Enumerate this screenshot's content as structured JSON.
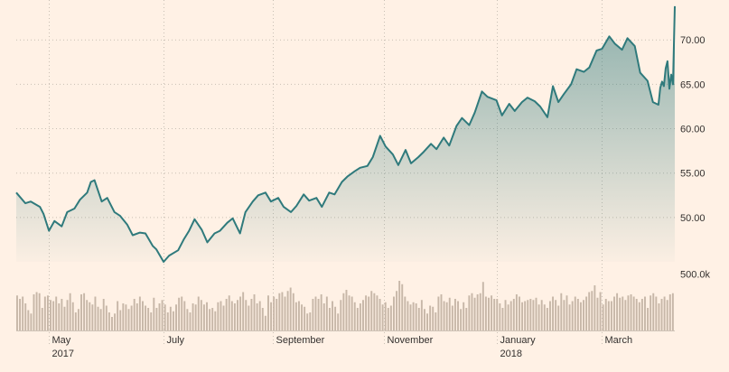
{
  "colors": {
    "background": "#fff1e5",
    "price_line": "#2f7a7c",
    "area_top": "#2f7a7c",
    "volume_bar": "#c7b7a8",
    "tick_label": "#33302e"
  },
  "chart_data": [
    {
      "type": "area",
      "ylim": [
        45.0,
        74.5
      ],
      "yticks": [
        {
          "value": 50,
          "label": "50.00"
        },
        {
          "value": 55,
          "label": "55.00"
        },
        {
          "value": 60,
          "label": "60.00"
        },
        {
          "value": 65,
          "label": "65.00"
        },
        {
          "value": 70,
          "label": "70.00"
        }
      ],
      "xlim": [
        "2017-04-13",
        "2018-04-10"
      ],
      "xticks": [
        {
          "date": "2017-05-01",
          "label": "May",
          "sublabel": "2017"
        },
        {
          "date": "2017-07-03",
          "label": "July",
          "sublabel": ""
        },
        {
          "date": "2017-09-01",
          "label": "September",
          "sublabel": ""
        },
        {
          "date": "2017-11-01",
          "label": "November",
          "sublabel": ""
        },
        {
          "date": "2018-01-02",
          "label": "January",
          "sublabel": "2018"
        },
        {
          "date": "2018-03-01",
          "label": "March",
          "sublabel": ""
        }
      ],
      "grid": true,
      "series": [
        {
          "points": [
            [
              "2017-04-13",
              52.8
            ],
            [
              "2017-04-18",
              51.6
            ],
            [
              "2017-04-21",
              51.8
            ],
            [
              "2017-04-26",
              51.2
            ],
            [
              "2017-04-28",
              50.4
            ],
            [
              "2017-05-01",
              48.5
            ],
            [
              "2017-05-04",
              49.6
            ],
            [
              "2017-05-08",
              49.0
            ],
            [
              "2017-05-11",
              50.6
            ],
            [
              "2017-05-15",
              51.0
            ],
            [
              "2017-05-18",
              52.0
            ],
            [
              "2017-05-22",
              52.8
            ],
            [
              "2017-05-24",
              54.0
            ],
            [
              "2017-05-26",
              54.2
            ],
            [
              "2017-05-30",
              51.8
            ],
            [
              "2017-06-02",
              52.2
            ],
            [
              "2017-06-06",
              50.6
            ],
            [
              "2017-06-09",
              50.2
            ],
            [
              "2017-06-13",
              49.2
            ],
            [
              "2017-06-16",
              48.0
            ],
            [
              "2017-06-20",
              48.3
            ],
            [
              "2017-06-23",
              48.2
            ],
            [
              "2017-06-27",
              46.8
            ],
            [
              "2017-06-29",
              46.4
            ],
            [
              "2017-07-03",
              45.0
            ],
            [
              "2017-07-06",
              45.7
            ],
            [
              "2017-07-11",
              46.3
            ],
            [
              "2017-07-14",
              47.5
            ],
            [
              "2017-07-17",
              48.5
            ],
            [
              "2017-07-20",
              49.8
            ],
            [
              "2017-07-24",
              48.6
            ],
            [
              "2017-07-27",
              47.2
            ],
            [
              "2017-07-31",
              48.2
            ],
            [
              "2017-08-03",
              48.5
            ],
            [
              "2017-08-07",
              49.4
            ],
            [
              "2017-08-10",
              49.9
            ],
            [
              "2017-08-14",
              48.2
            ],
            [
              "2017-08-17",
              50.6
            ],
            [
              "2017-08-21",
              51.8
            ],
            [
              "2017-08-24",
              52.5
            ],
            [
              "2017-08-28",
              52.8
            ],
            [
              "2017-08-31",
              51.8
            ],
            [
              "2017-09-04",
              52.2
            ],
            [
              "2017-09-07",
              51.2
            ],
            [
              "2017-09-11",
              50.6
            ],
            [
              "2017-09-14",
              51.3
            ],
            [
              "2017-09-18",
              52.6
            ],
            [
              "2017-09-21",
              51.9
            ],
            [
              "2017-09-25",
              52.2
            ],
            [
              "2017-09-28",
              51.2
            ],
            [
              "2017-10-02",
              52.8
            ],
            [
              "2017-10-05",
              52.6
            ],
            [
              "2017-10-09",
              54.0
            ],
            [
              "2017-10-12",
              54.6
            ],
            [
              "2017-10-16",
              55.2
            ],
            [
              "2017-10-19",
              55.6
            ],
            [
              "2017-10-23",
              55.8
            ],
            [
              "2017-10-26",
              56.8
            ],
            [
              "2017-10-30",
              59.2
            ],
            [
              "2017-11-02",
              58.0
            ],
            [
              "2017-11-06",
              57.1
            ],
            [
              "2017-11-09",
              55.9
            ],
            [
              "2017-11-13",
              57.6
            ],
            [
              "2017-11-16",
              56.1
            ],
            [
              "2017-11-20",
              56.8
            ],
            [
              "2017-11-23",
              57.4
            ],
            [
              "2017-11-27",
              58.3
            ],
            [
              "2017-11-30",
              57.7
            ],
            [
              "2017-12-04",
              59.0
            ],
            [
              "2017-12-07",
              58.1
            ],
            [
              "2017-12-11",
              60.3
            ],
            [
              "2017-12-14",
              61.2
            ],
            [
              "2017-12-18",
              60.4
            ],
            [
              "2017-12-21",
              61.8
            ],
            [
              "2017-12-25",
              64.2
            ],
            [
              "2017-12-28",
              63.6
            ],
            [
              "2018-01-02",
              63.2
            ],
            [
              "2018-01-05",
              61.5
            ],
            [
              "2018-01-09",
              62.8
            ],
            [
              "2018-01-12",
              62.0
            ],
            [
              "2018-01-16",
              63.0
            ],
            [
              "2018-01-19",
              63.5
            ],
            [
              "2018-01-23",
              63.1
            ],
            [
              "2018-01-26",
              62.5
            ],
            [
              "2018-01-30",
              61.3
            ],
            [
              "2018-02-02",
              64.8
            ],
            [
              "2018-02-05",
              63.0
            ],
            [
              "2018-02-08",
              63.9
            ],
            [
              "2018-02-12",
              65.0
            ],
            [
              "2018-02-15",
              66.7
            ],
            [
              "2018-02-19",
              66.4
            ],
            [
              "2018-02-22",
              66.9
            ],
            [
              "2018-02-26",
              68.8
            ],
            [
              "2018-03-01",
              69.0
            ],
            [
              "2018-03-05",
              70.4
            ],
            [
              "2018-03-08",
              69.6
            ],
            [
              "2018-03-12",
              68.9
            ],
            [
              "2018-03-15",
              70.2
            ],
            [
              "2018-03-19",
              69.3
            ],
            [
              "2018-03-22",
              66.3
            ],
            [
              "2018-03-26",
              65.4
            ],
            [
              "2018-03-29",
              63.0
            ],
            [
              "2018-04-01",
              62.7
            ],
            [
              "2018-04-02",
              64.6
            ],
            [
              "2018-04-03",
              65.3
            ],
            [
              "2018-04-04",
              64.8
            ],
            [
              "2018-04-05",
              66.8
            ],
            [
              "2018-04-06",
              67.6
            ],
            [
              "2018-04-07",
              64.5
            ],
            [
              "2018-04-08",
              66.1
            ],
            [
              "2018-04-09",
              65.0
            ],
            [
              "2018-04-10",
              73.8
            ]
          ]
        }
      ]
    },
    {
      "type": "bar",
      "yticks": [
        {
          "value": 500000,
          "label": "500.0k"
        }
      ],
      "ylim": [
        0,
        560000
      ],
      "grid": false,
      "series": [
        {
          "values": [
            310000,
            280000,
            300000,
            240000,
            180000,
            150000,
            320000,
            340000,
            330000,
            200000,
            300000,
            310000,
            270000,
            260000,
            300000,
            240000,
            280000,
            210000,
            270000,
            330000,
            250000,
            160000,
            190000,
            320000,
            330000,
            270000,
            250000,
            230000,
            300000,
            210000,
            190000,
            280000,
            220000,
            160000,
            120000,
            150000,
            260000,
            180000,
            240000,
            230000,
            190000,
            220000,
            280000,
            240000,
            300000,
            260000,
            220000,
            200000,
            160000,
            290000,
            200000,
            240000,
            270000,
            230000,
            160000,
            210000,
            170000,
            230000,
            290000,
            300000,
            260000,
            190000,
            160000,
            240000,
            230000,
            300000,
            270000,
            230000,
            250000,
            190000,
            200000,
            170000,
            250000,
            260000,
            220000,
            280000,
            310000,
            260000,
            240000,
            270000,
            300000,
            340000,
            270000,
            220000,
            280000,
            320000,
            240000,
            260000,
            200000,
            130000,
            310000,
            250000,
            300000,
            280000,
            330000,
            340000,
            300000,
            350000,
            380000,
            330000,
            250000,
            260000,
            230000,
            210000,
            150000,
            160000,
            280000,
            300000,
            280000,
            320000,
            240000,
            300000,
            200000,
            260000,
            210000,
            150000,
            270000,
            330000,
            360000,
            310000,
            300000,
            250000,
            200000,
            240000,
            270000,
            310000,
            300000,
            350000,
            330000,
            310000,
            280000,
            230000,
            250000,
            200000,
            220000,
            300000,
            350000,
            440000,
            410000,
            300000,
            260000,
            230000,
            250000,
            240000,
            200000,
            270000,
            190000,
            150000,
            220000,
            210000,
            160000,
            300000,
            320000,
            260000,
            250000,
            290000,
            220000,
            280000,
            260000,
            190000,
            250000,
            200000,
            310000,
            330000,
            290000,
            320000,
            330000,
            430000,
            300000,
            290000,
            310000,
            280000,
            280000,
            240000,
            200000,
            270000,
            230000,
            260000,
            280000,
            320000,
            300000,
            250000,
            260000,
            270000,
            280000,
            270000,
            290000,
            230000,
            270000,
            230000,
            200000,
            260000,
            300000,
            270000,
            220000,
            330000,
            270000,
            310000,
            230000,
            260000,
            300000,
            280000,
            250000,
            270000,
            300000,
            340000,
            350000,
            400000,
            290000,
            340000,
            230000,
            280000,
            260000,
            260000,
            300000,
            330000,
            290000,
            300000,
            270000,
            310000,
            320000,
            300000,
            280000,
            250000,
            280000,
            300000,
            200000,
            310000,
            330000,
            300000,
            240000,
            280000,
            300000,
            270000,
            320000,
            330000
          ]
        }
      ]
    }
  ]
}
